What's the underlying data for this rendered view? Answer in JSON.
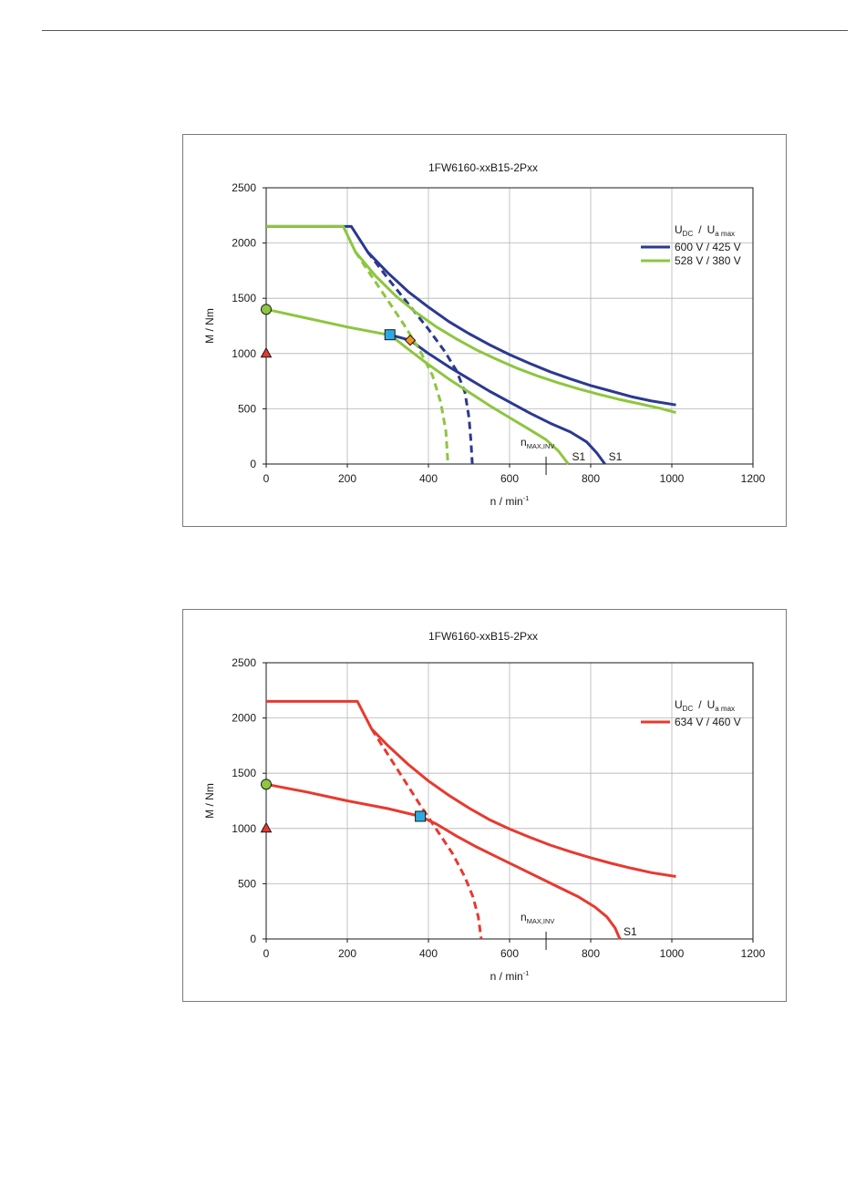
{
  "chart_data": [
    {
      "type": "line",
      "title": "1FW6160-xxB15-2Pxx",
      "xlabel": "n / min",
      "xlabel_sup": "-1",
      "ylabel": "M / Nm",
      "xlim": [
        0,
        1200
      ],
      "ylim": [
        0,
        2500
      ],
      "xticks": [
        0,
        200,
        400,
        600,
        800,
        1000,
        1200
      ],
      "yticks": [
        0,
        500,
        1000,
        1500,
        2000,
        2500
      ],
      "grid": true,
      "legend_title": {
        "main": "U",
        "main_sub": "DC",
        "sep": "/",
        "second": "U",
        "second_sub": "a max"
      },
      "legend_position": "top-right",
      "series": [
        {
          "name": "600 V / 425 V",
          "color": "#2b3990",
          "peak": [
            [
              210,
              2150
            ],
            [
              250,
              1920
            ],
            [
              300,
              1730
            ],
            [
              350,
              1560
            ],
            [
              400,
              1420
            ],
            [
              450,
              1290
            ],
            [
              500,
              1180
            ],
            [
              550,
              1080
            ],
            [
              600,
              990
            ],
            [
              650,
              910
            ],
            [
              700,
              835
            ],
            [
              750,
              770
            ],
            [
              800,
              710
            ],
            [
              850,
              660
            ],
            [
              900,
              610
            ],
            [
              950,
              570
            ],
            [
              1010,
              535
            ]
          ],
          "dashed": [
            [
              250,
              1920
            ],
            [
              300,
              1680
            ],
            [
              350,
              1450
            ],
            [
              400,
              1220
            ],
            [
              440,
              1020
            ],
            [
              470,
              840
            ],
            [
              490,
              650
            ],
            [
              500,
              420
            ],
            [
              505,
              200
            ],
            [
              508,
              0
            ]
          ],
          "s1": [
            [
              355,
              1120
            ],
            [
              400,
              1000
            ],
            [
              450,
              880
            ],
            [
              500,
              770
            ],
            [
              550,
              660
            ],
            [
              600,
              560
            ],
            [
              650,
              460
            ],
            [
              700,
              370
            ],
            [
              750,
              290
            ],
            [
              790,
              200
            ],
            [
              815,
              100
            ],
            [
              835,
              0
            ]
          ],
          "s1_label": "S1"
        },
        {
          "name": "528 V / 380 V",
          "color": "#8dc63f",
          "peak": [
            [
              190,
              2150
            ],
            [
              220,
              1920
            ],
            [
              270,
              1700
            ],
            [
              320,
              1520
            ],
            [
              370,
              1370
            ],
            [
              420,
              1240
            ],
            [
              470,
              1130
            ],
            [
              520,
              1030
            ],
            [
              570,
              945
            ],
            [
              620,
              865
            ],
            [
              670,
              795
            ],
            [
              720,
              735
            ],
            [
              770,
              680
            ],
            [
              820,
              630
            ],
            [
              870,
              585
            ],
            [
              920,
              545
            ],
            [
              970,
              505
            ],
            [
              1010,
              465
            ]
          ],
          "dashed": [
            [
              220,
              1920
            ],
            [
              260,
              1700
            ],
            [
              300,
              1480
            ],
            [
              340,
              1260
            ],
            [
              380,
              1020
            ],
            [
              410,
              800
            ],
            [
              430,
              560
            ],
            [
              443,
              300
            ],
            [
              448,
              0
            ]
          ],
          "s1": [
            [
              305,
              1170
            ],
            [
              350,
              1040
            ],
            [
              400,
              900
            ],
            [
              450,
              770
            ],
            [
              500,
              650
            ],
            [
              550,
              530
            ],
            [
              600,
              420
            ],
            [
              650,
              310
            ],
            [
              690,
              220
            ],
            [
              720,
              120
            ],
            [
              745,
              0
            ]
          ],
          "s1_label": "S1"
        }
      ],
      "flat_top": {
        "value": 2150,
        "x_start": 0
      },
      "s1_common": [
        [
          0,
          1400
        ],
        [
          100,
          1320
        ],
        [
          200,
          1240
        ],
        [
          300,
          1170
        ]
      ],
      "markers": [
        {
          "shape": "circle",
          "x": 0,
          "y": 1400,
          "color": "#8dc63f"
        },
        {
          "shape": "triangle",
          "x": 0,
          "y": 1000,
          "color": "#e8392f"
        },
        {
          "shape": "square",
          "x": 305,
          "y": 1170,
          "color": "#29abe2"
        },
        {
          "shape": "diamond",
          "x": 355,
          "y": 1120,
          "color": "#f7941d"
        }
      ],
      "nmax": {
        "x": 690,
        "label": "n",
        "label_sub": "MAX,INV"
      }
    },
    {
      "type": "line",
      "title": "1FW6160-xxB15-2Pxx",
      "xlabel": "n / min",
      "xlabel_sup": "-1",
      "ylabel": "M / Nm",
      "xlim": [
        0,
        1200
      ],
      "ylim": [
        0,
        2500
      ],
      "xticks": [
        0,
        200,
        400,
        600,
        800,
        1000,
        1200
      ],
      "yticks": [
        0,
        500,
        1000,
        1500,
        2000,
        2500
      ],
      "grid": true,
      "legend_title": {
        "main": "U",
        "main_sub": "DC",
        "sep": "/",
        "second": "U",
        "second_sub": "a max"
      },
      "legend_position": "top-right",
      "series": [
        {
          "name": "634 V / 460 V",
          "color": "#e8392f",
          "peak": [
            [
              225,
              2150
            ],
            [
              260,
              1900
            ],
            [
              300,
              1750
            ],
            [
              350,
              1580
            ],
            [
              400,
              1430
            ],
            [
              450,
              1300
            ],
            [
              500,
              1185
            ],
            [
              550,
              1080
            ],
            [
              600,
              995
            ],
            [
              650,
              920
            ],
            [
              700,
              850
            ],
            [
              750,
              790
            ],
            [
              800,
              735
            ],
            [
              850,
              685
            ],
            [
              900,
              640
            ],
            [
              950,
              600
            ],
            [
              1010,
              565
            ]
          ],
          "dashed": [
            [
              260,
              1900
            ],
            [
              300,
              1670
            ],
            [
              340,
              1440
            ],
            [
              380,
              1210
            ],
            [
              420,
              990
            ],
            [
              460,
              770
            ],
            [
              490,
              560
            ],
            [
              510,
              380
            ],
            [
              523,
              200
            ],
            [
              530,
              0
            ]
          ],
          "s1": [
            [
              380,
              1110
            ],
            [
              420,
              1040
            ],
            [
              470,
              930
            ],
            [
              520,
              830
            ],
            [
              570,
              740
            ],
            [
              620,
              650
            ],
            [
              670,
              560
            ],
            [
              720,
              470
            ],
            [
              770,
              380
            ],
            [
              810,
              290
            ],
            [
              840,
              200
            ],
            [
              860,
              100
            ],
            [
              872,
              0
            ]
          ],
          "s1_label": "S1"
        }
      ],
      "flat_top": {
        "value": 2150,
        "x_start": 0
      },
      "s1_common": [
        [
          0,
          1400
        ],
        [
          100,
          1330
        ],
        [
          200,
          1250
        ],
        [
          300,
          1180
        ],
        [
          380,
          1110
        ]
      ],
      "markers": [
        {
          "shape": "circle",
          "x": 0,
          "y": 1400,
          "color": "#8dc63f"
        },
        {
          "shape": "triangle",
          "x": 0,
          "y": 1000,
          "color": "#e8392f"
        },
        {
          "shape": "square",
          "x": 380,
          "y": 1110,
          "color": "#29abe2"
        }
      ],
      "nmax": {
        "x": 690,
        "label": "n",
        "label_sub": "MAX,INV"
      }
    }
  ]
}
